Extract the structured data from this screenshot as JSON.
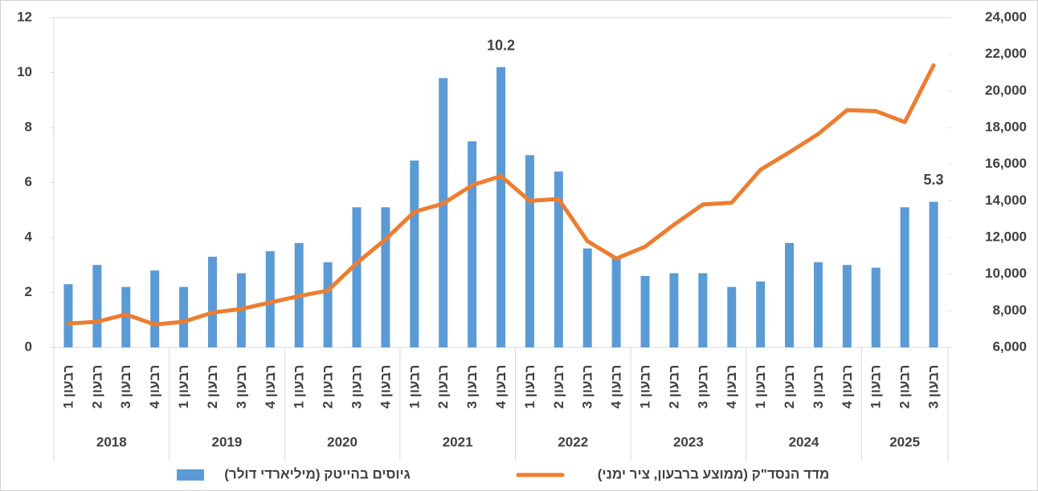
{
  "chart_data": {
    "type": "bar_line",
    "groups": [
      {
        "name": "2018",
        "categories": [
          "רבעון 1",
          "רבעון 2",
          "רבעון 3",
          "רבעון 4"
        ]
      },
      {
        "name": "2019",
        "categories": [
          "רבעון 1",
          "רבעון 2",
          "רבעון 3",
          "רבעון 4"
        ]
      },
      {
        "name": "2020",
        "categories": [
          "רבעון 1",
          "רבעון 2",
          "רבעון 3",
          "רבעון 4"
        ]
      },
      {
        "name": "2021",
        "categories": [
          "רבעון 1",
          "רבעון 2",
          "רבעון 3",
          "רבעון 4"
        ]
      },
      {
        "name": "2022",
        "categories": [
          "רבעון 1",
          "רבעון 2",
          "רבעון 3",
          "רבעון 4"
        ]
      },
      {
        "name": "2023",
        "categories": [
          "רבעון 1",
          "רבעון 2",
          "רבעון 3",
          "רבעון 4"
        ]
      },
      {
        "name": "2024",
        "categories": [
          "רבעון 1",
          "רבעון 2",
          "רבעון 3",
          "רבעון 4"
        ]
      },
      {
        "name": "2025",
        "categories": [
          "רבעון 1",
          "רבעון 2",
          "רבעון 3"
        ]
      }
    ],
    "series": [
      {
        "name": "גיוסים בהייטק (מיליארדי דולר)",
        "type": "bar",
        "color": "#5b9bd5",
        "values": [
          2.3,
          3.0,
          2.2,
          2.8,
          2.2,
          3.3,
          2.7,
          3.5,
          3.8,
          3.1,
          5.1,
          5.1,
          6.8,
          9.8,
          7.5,
          10.2,
          7.0,
          6.4,
          3.6,
          3.3,
          2.6,
          2.7,
          2.7,
          2.2,
          2.4,
          3.8,
          3.1,
          3.0,
          2.9,
          5.1,
          5.3
        ],
        "value_labels": [
          null,
          null,
          null,
          null,
          null,
          null,
          null,
          null,
          null,
          null,
          null,
          null,
          null,
          null,
          null,
          "10.2",
          null,
          null,
          null,
          null,
          null,
          null,
          null,
          null,
          null,
          null,
          null,
          null,
          null,
          null,
          "5.3"
        ]
      },
      {
        "name": "מדד הנסד\"ק (ממוצע ברבעון, ציר ימני)",
        "type": "line",
        "color": "#ed7d31",
        "axis": "y2",
        "values": [
          7300,
          7400,
          7800,
          7250,
          7400,
          7900,
          8100,
          8450,
          8800,
          9100,
          10600,
          11900,
          13400,
          13850,
          14850,
          15350,
          14000,
          14100,
          11800,
          10850,
          11500,
          12700,
          13800,
          13900,
          15700,
          16650,
          17650,
          18950,
          18900,
          18300,
          21400
        ]
      }
    ],
    "ylim": [
      0,
      12
    ],
    "yticks": [
      0,
      2,
      4,
      6,
      8,
      10,
      12
    ],
    "y2lim": [
      6000,
      24000
    ],
    "y2ticks": [
      {
        "value": 6000,
        "label": "6,000"
      },
      {
        "value": 8000,
        "label": "8,000"
      },
      {
        "value": 10000,
        "label": "10,000"
      },
      {
        "value": 12000,
        "label": "12,000"
      },
      {
        "value": 14000,
        "label": "14,000"
      },
      {
        "value": 16000,
        "label": "16,000"
      },
      {
        "value": 18000,
        "label": "18,000"
      },
      {
        "value": 20000,
        "label": "20,000"
      },
      {
        "value": 22000,
        "label": "22,000"
      },
      {
        "value": 24000,
        "label": "24,000"
      }
    ],
    "grid": false,
    "legend": "bottom"
  }
}
